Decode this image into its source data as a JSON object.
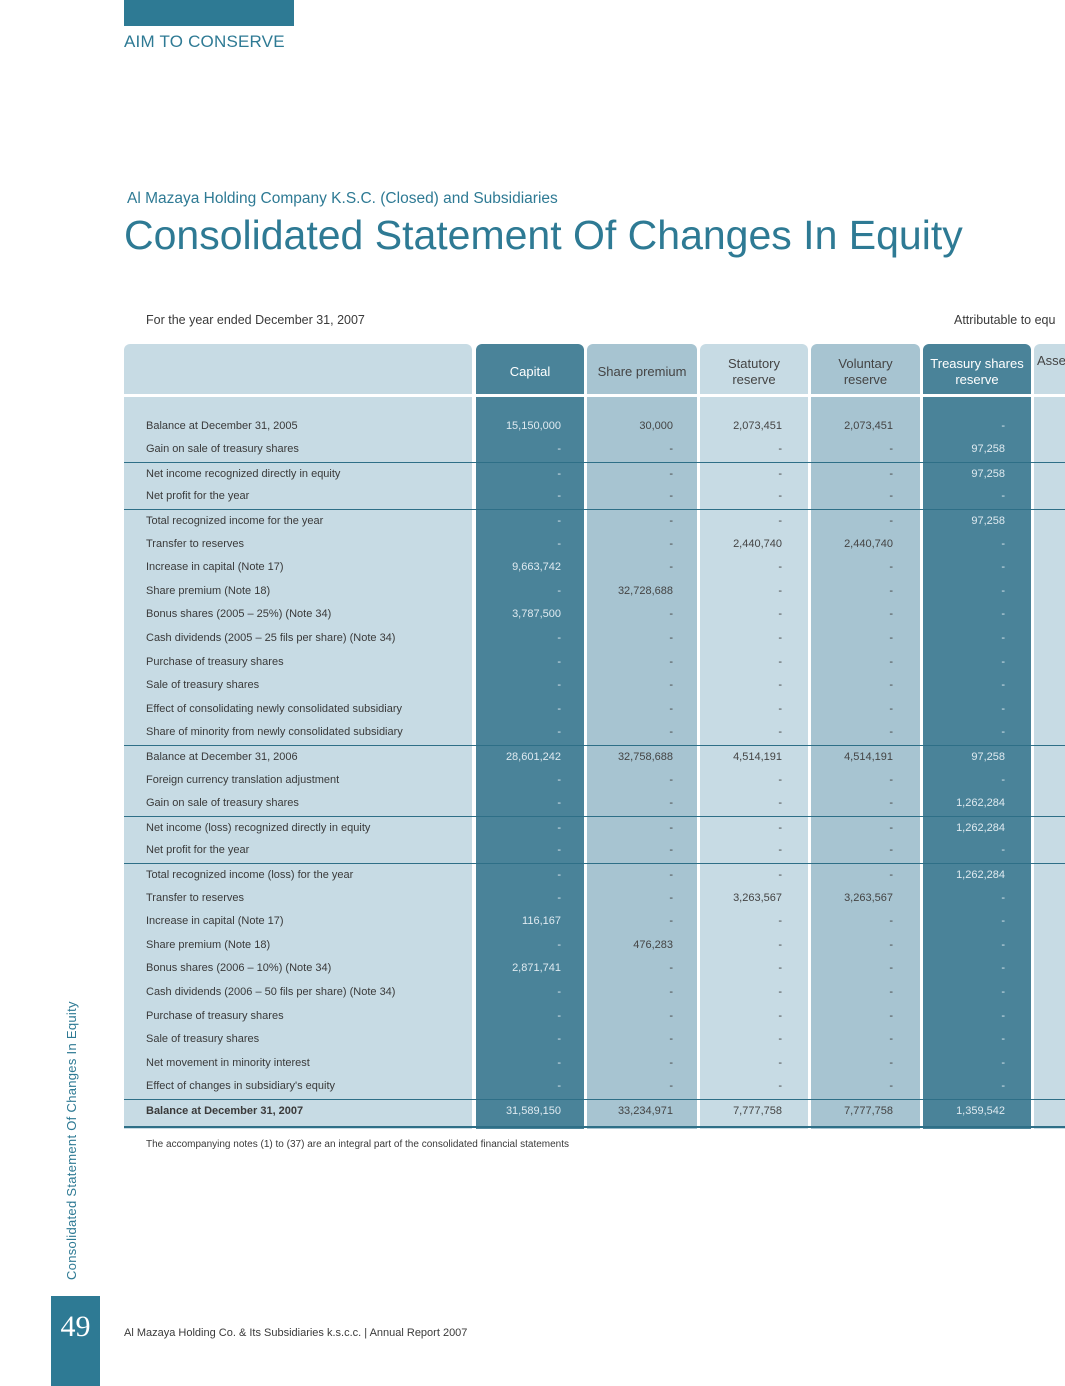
{
  "brand": "AIM TO CONSERVE",
  "company": "Al Mazaya Holding Company K.S.C. (Closed) and Subsidiaries",
  "title": "Consolidated Statement Of Changes In Equity",
  "period": "For the year ended  December 31, 2007",
  "attributable": "Attributable to equ",
  "columns": {
    "capital": "Capital",
    "share_premium": "Share premium",
    "statutory_1": "Statutory",
    "statutory_2": "reserve",
    "voluntary_1": "Voluntary",
    "voluntary_2": "reserve",
    "treasury_1": "Treasury shares",
    "treasury_2": "reserve",
    "asset": "Asse"
  },
  "rows": [
    {
      "label": "Balance at December 31, 2005",
      "capital": "15,150,000",
      "premium": "30,000",
      "statutory": "2,073,451",
      "voluntary": "2,073,451",
      "treasury": "-"
    },
    {
      "label": "Gain on sale of treasury shares",
      "capital": "-",
      "premium": "-",
      "statutory": "-",
      "voluntary": "-",
      "treasury": "97,258"
    },
    {
      "label": "Net income recognized directly in equity",
      "capital": "-",
      "premium": "-",
      "statutory": "-",
      "voluntary": "-",
      "treasury": "97,258"
    },
    {
      "label": "Net profit for the year",
      "capital": "-",
      "premium": "-",
      "statutory": "-",
      "voluntary": "-",
      "treasury": "-"
    },
    {
      "label": "Total recognized income for the year",
      "capital": "-",
      "premium": "-",
      "statutory": "-",
      "voluntary": "-",
      "treasury": "97,258"
    },
    {
      "label": "Transfer to reserves",
      "capital": "-",
      "premium": "-",
      "statutory": "2,440,740",
      "voluntary": "2,440,740",
      "treasury": "-"
    },
    {
      "label": "Increase in capital (Note 17)",
      "capital": "9,663,742",
      "premium": "-",
      "statutory": "-",
      "voluntary": "-",
      "treasury": "-"
    },
    {
      "label": "Share premium (Note 18)",
      "capital": "-",
      "premium": "32,728,688",
      "statutory": "-",
      "voluntary": "-",
      "treasury": "-"
    },
    {
      "label": "Bonus shares (2005 – 25%) (Note 34)",
      "capital": "3,787,500",
      "premium": "-",
      "statutory": "-",
      "voluntary": "-",
      "treasury": "-"
    },
    {
      "label": "Cash dividends (2005 – 25 fils per share) (Note 34)",
      "capital": "-",
      "premium": "-",
      "statutory": "-",
      "voluntary": "-",
      "treasury": "-"
    },
    {
      "label": "Purchase of treasury shares",
      "capital": "-",
      "premium": "-",
      "statutory": "-",
      "voluntary": "-",
      "treasury": "-"
    },
    {
      "label": "Sale of treasury shares",
      "capital": "-",
      "premium": "-",
      "statutory": "-",
      "voluntary": "-",
      "treasury": "-"
    },
    {
      "label": "Effect of consolidating newly consolidated subsidiary",
      "capital": "-",
      "premium": "-",
      "statutory": "-",
      "voluntary": "-",
      "treasury": "-"
    },
    {
      "label": "Share of minority from newly consolidated subsidiary",
      "capital": "-",
      "premium": "-",
      "statutory": "-",
      "voluntary": "-",
      "treasury": "-"
    },
    {
      "label": "Balance at December 31, 2006",
      "capital": "28,601,242",
      "premium": "32,758,688",
      "statutory": "4,514,191",
      "voluntary": "4,514,191",
      "treasury": "97,258"
    },
    {
      "label": "Foreign currency translation adjustment",
      "capital": "-",
      "premium": "-",
      "statutory": "-",
      "voluntary": "-",
      "treasury": "-"
    },
    {
      "label": "Gain on sale of treasury shares",
      "capital": "-",
      "premium": "-",
      "statutory": "-",
      "voluntary": "-",
      "treasury": "1,262,284"
    },
    {
      "label": "Net income (loss) recognized directly in equity",
      "capital": "-",
      "premium": "-",
      "statutory": "-",
      "voluntary": "-",
      "treasury": "1,262,284"
    },
    {
      "label": "Net profit for the year",
      "capital": "-",
      "premium": "-",
      "statutory": "-",
      "voluntary": "-",
      "treasury": "-"
    },
    {
      "label": "Total recognized income (loss) for the year",
      "capital": "-",
      "premium": "-",
      "statutory": "-",
      "voluntary": "-",
      "treasury": "1,262,284"
    },
    {
      "label": "Transfer to reserves",
      "capital": "-",
      "premium": "-",
      "statutory": "3,263,567",
      "voluntary": "3,263,567",
      "treasury": "-"
    },
    {
      "label": "Increase in capital (Note 17)",
      "capital": "116,167",
      "premium": "-",
      "statutory": "-",
      "voluntary": "-",
      "treasury": "-"
    },
    {
      "label": "Share premium (Note 18)",
      "capital": "-",
      "premium": "476,283",
      "statutory": "-",
      "voluntary": "-",
      "treasury": "-"
    },
    {
      "label": "Bonus shares (2006 – 10%) (Note 34)",
      "capital": "2,871,741",
      "premium": "-",
      "statutory": "-",
      "voluntary": "-",
      "treasury": "-"
    },
    {
      "label": "Cash dividends (2006 – 50 fils per share) (Note 34)",
      "capital": "-",
      "premium": "-",
      "statutory": "-",
      "voluntary": "-",
      "treasury": "-"
    },
    {
      "label": "Purchase of treasury shares",
      "capital": "-",
      "premium": "-",
      "statutory": "-",
      "voluntary": "-",
      "treasury": "-"
    },
    {
      "label": "Sale of treasury shares",
      "capital": "-",
      "premium": "-",
      "statutory": "-",
      "voluntary": "-",
      "treasury": "-"
    },
    {
      "label": "Net movement in minority interest",
      "capital": "-",
      "premium": "-",
      "statutory": "-",
      "voluntary": "-",
      "treasury": "-"
    },
    {
      "label": "Effect of changes in subsidiary's equity",
      "capital": "-",
      "premium": "-",
      "statutory": "-",
      "voluntary": "-",
      "treasury": "-"
    },
    {
      "label": "Balance at December 31, 2007",
      "capital": "31,589,150",
      "premium": "33,234,971",
      "statutory": "7,777,758",
      "voluntary": "7,777,758",
      "treasury": "1,359,542"
    }
  ],
  "note": "The accompanying notes (1) to (37) are an integral part of the consolidated financial statements",
  "side_title": "Consolidated Statement Of Changes In Equity",
  "page_number": "49",
  "footer": "Al Mazaya Holding Co. & Its Subsidiaries k.s.c.c. | Annual Report 2007"
}
